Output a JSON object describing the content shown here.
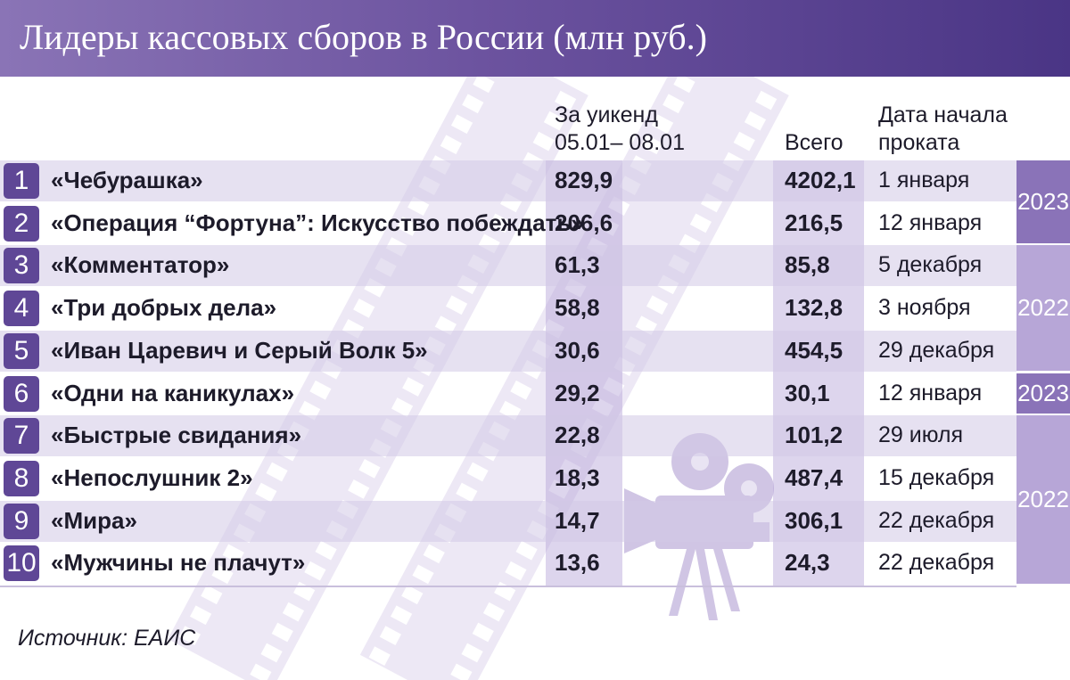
{
  "title": "Лидеры кассовых сборов в России (млн руб.)",
  "headers": {
    "weekend": "За уикенд\n05.01– 08.01",
    "total": "Всего",
    "release": "Дата начала\nпроката"
  },
  "chart_data": {
    "type": "table",
    "columns": [
      "",
      "",
      "За уикенд 05.01– 08.01",
      "Всего",
      "Дата начала проката"
    ],
    "rows": [
      {
        "rank": "1",
        "film": "«Чебурашка»",
        "weekend": "829,9",
        "total": "4202,1",
        "release": "1 января"
      },
      {
        "rank": "2",
        "film": "«Операция “Фортуна”: Искусство побеждать»",
        "weekend": "206,6",
        "total": "216,5",
        "release": "12 января"
      },
      {
        "rank": "3",
        "film": "«Комментатор»",
        "weekend": "61,3",
        "total": "85,8",
        "release": "5 декабря"
      },
      {
        "rank": "4",
        "film": "«Три добрых дела»",
        "weekend": "58,8",
        "total": "132,8",
        "release": "3 ноября"
      },
      {
        "rank": "5",
        "film": "«Иван Царевич и Серый Волк 5»",
        "weekend": "30,6",
        "total": "454,5",
        "release": "29 декабря"
      },
      {
        "rank": "6",
        "film": "«Одни на каникулах»",
        "weekend": "29,2",
        "total": "30,1",
        "release": "12 января"
      },
      {
        "rank": "7",
        "film": "«Быстрые свидания»",
        "weekend": "22,8",
        "total": "101,2",
        "release": "29 июля"
      },
      {
        "rank": "8",
        "film": "«Непослушник 2»",
        "weekend": "18,3",
        "total": "487,4",
        "release": "15 декабря"
      },
      {
        "rank": "9",
        "film": "«Мира»",
        "weekend": "14,7",
        "total": "306,1",
        "release": "22 декабря"
      },
      {
        "rank": "10",
        "film": "«Мужчины не плачут»",
        "weekend": "13,6",
        "total": "24,3",
        "release": "22 декабря"
      }
    ],
    "year_groups": [
      {
        "label": "2023",
        "first_row": 1,
        "last_row": 2,
        "shade": "dark"
      },
      {
        "label": "2022",
        "first_row": 3,
        "last_row": 5,
        "shade": "light"
      },
      {
        "label": "2023",
        "first_row": 6,
        "last_row": 6,
        "shade": "dark"
      },
      {
        "label": "2022",
        "first_row": 7,
        "last_row": 10,
        "shade": "light"
      }
    ]
  },
  "source": "Источник: ЕАИС",
  "colors": {
    "title_bar_start": "#8a74b6",
    "title_bar_end": "#4a3585",
    "rank_badge": "#5f4796",
    "year_dark": "#8a73b8",
    "year_light": "#b7a6d7",
    "decoration": "#d9d0ea"
  },
  "icons": [
    "film-strip-icon",
    "movie-projector-icon"
  ]
}
